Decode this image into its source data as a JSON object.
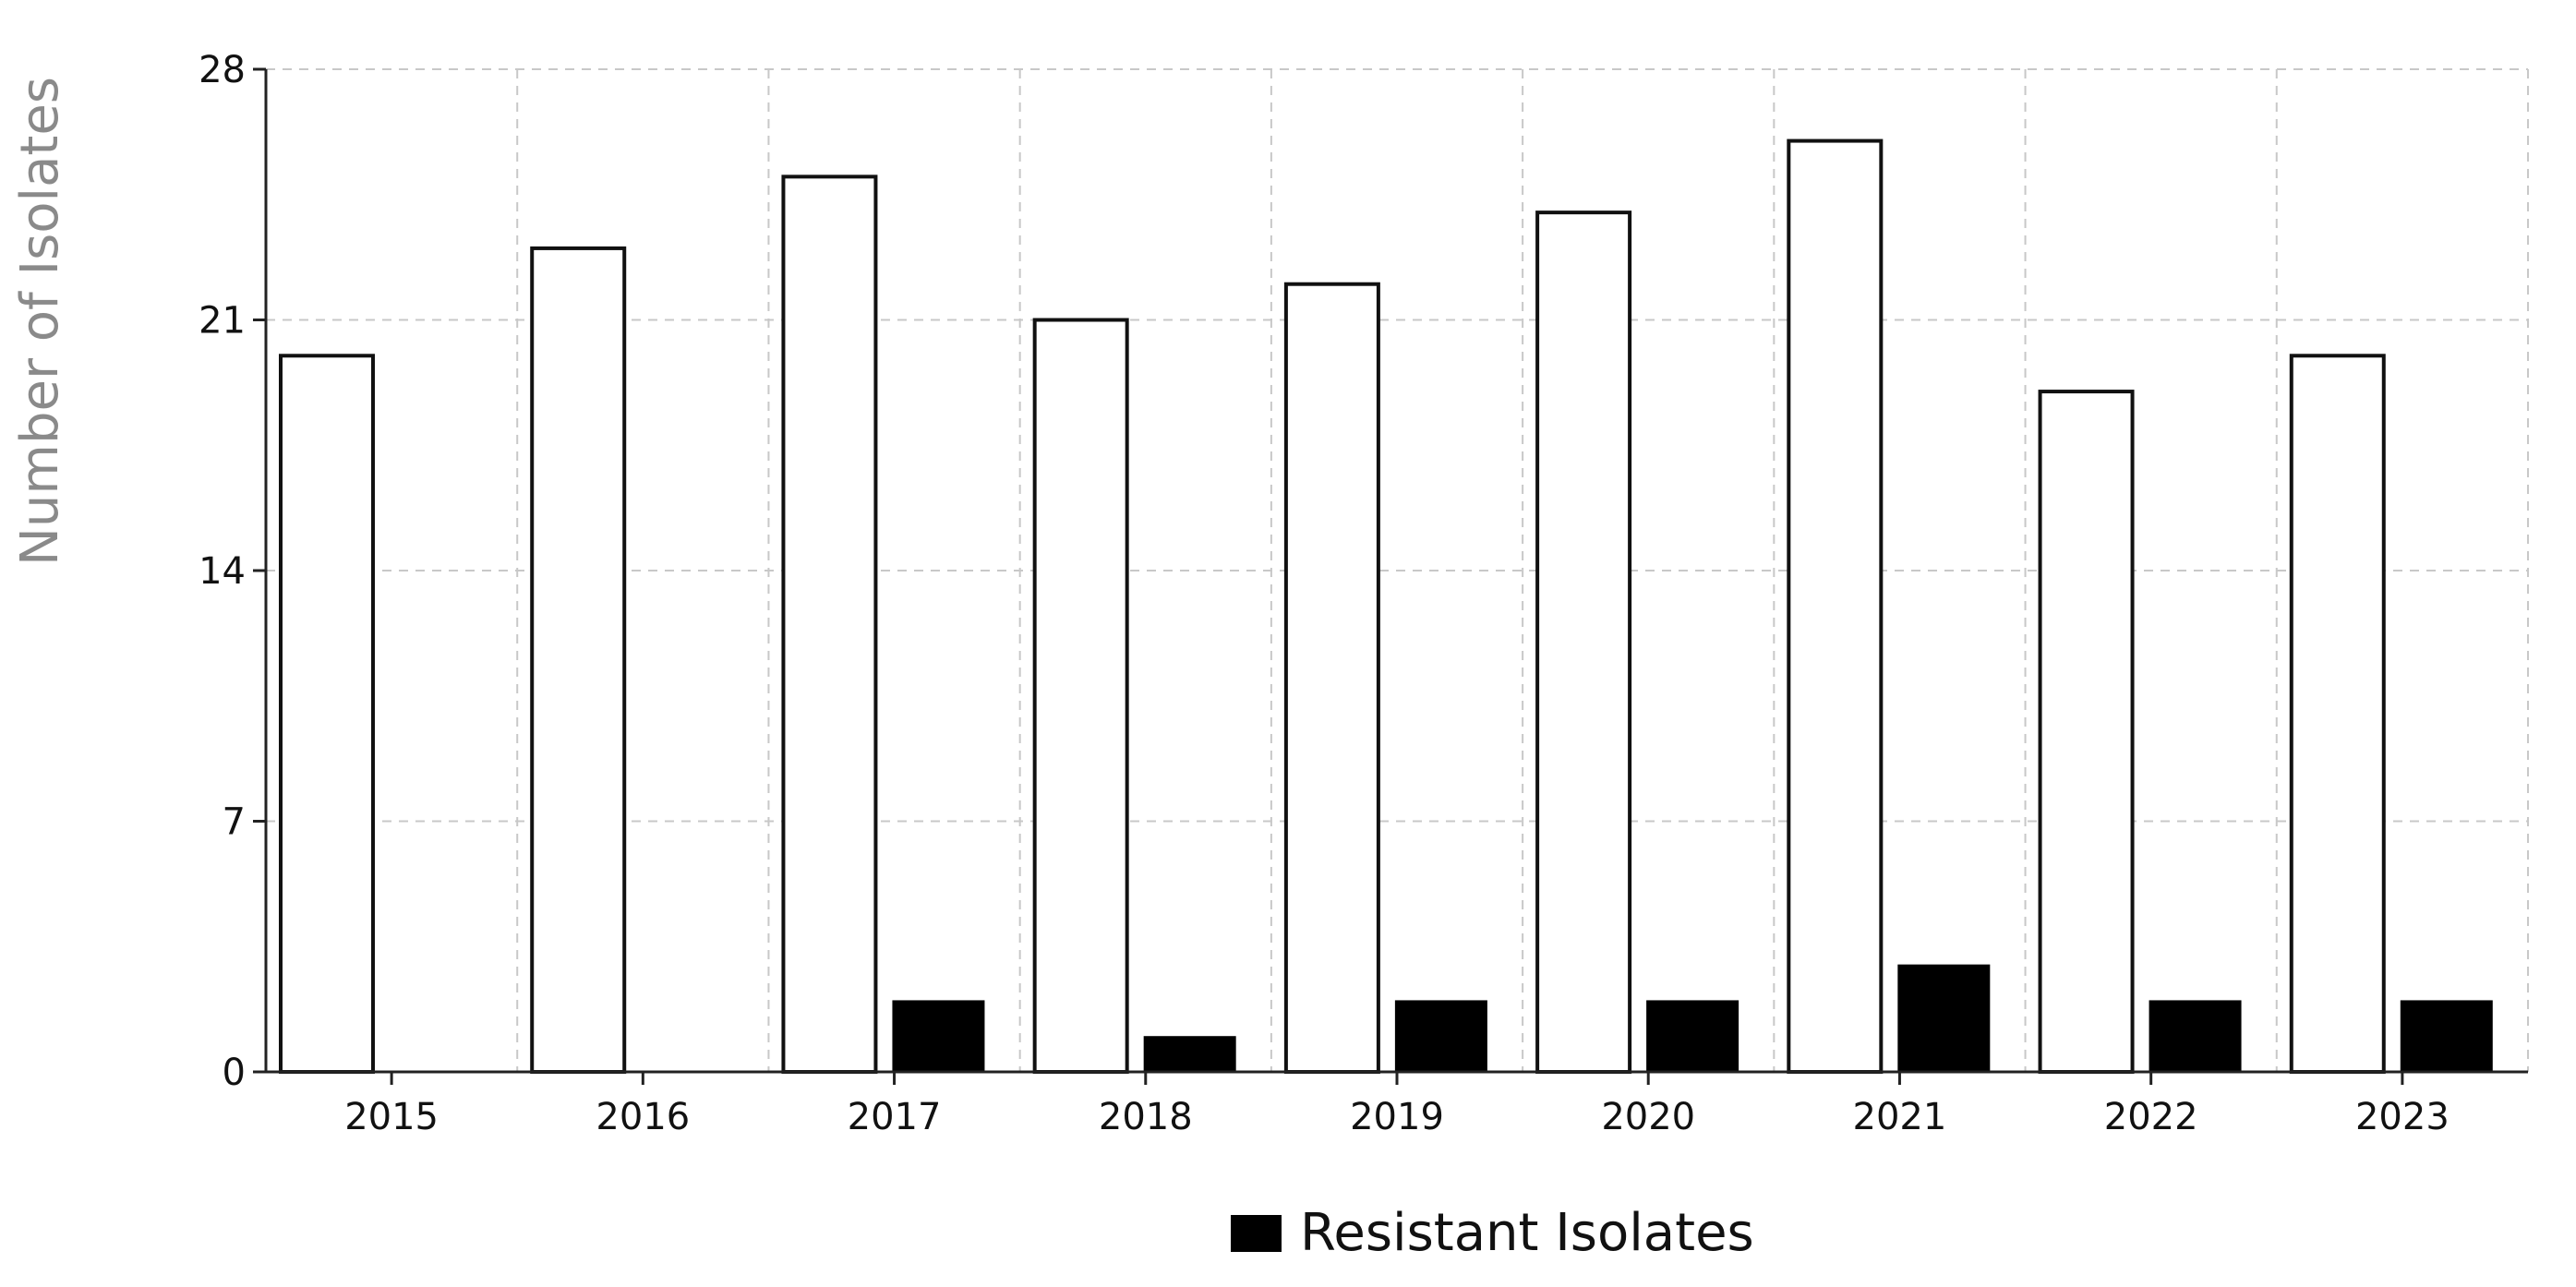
{
  "chart_data": {
    "type": "bar",
    "categories": [
      "2015",
      "2016",
      "2017",
      "2018",
      "2019",
      "2020",
      "2021",
      "2022",
      "2023"
    ],
    "series": [
      {
        "values": [
          20,
          23,
          25,
          21,
          22,
          24,
          26,
          19,
          20
        ],
        "color": "#ffffff",
        "edge_color": "#111111"
      },
      {
        "name": "Resistant Isolates",
        "values": [
          0,
          0,
          2,
          1,
          2,
          2,
          3,
          2,
          2
        ],
        "color": "#000000"
      }
    ],
    "title": "",
    "xlabel": "",
    "ylabel": "Number of Isolates",
    "ylim": [
      0,
      28
    ],
    "yticks": [
      "0",
      "7",
      "14",
      "21",
      "28"
    ],
    "grid": true,
    "legend_position": "bottom-center"
  }
}
